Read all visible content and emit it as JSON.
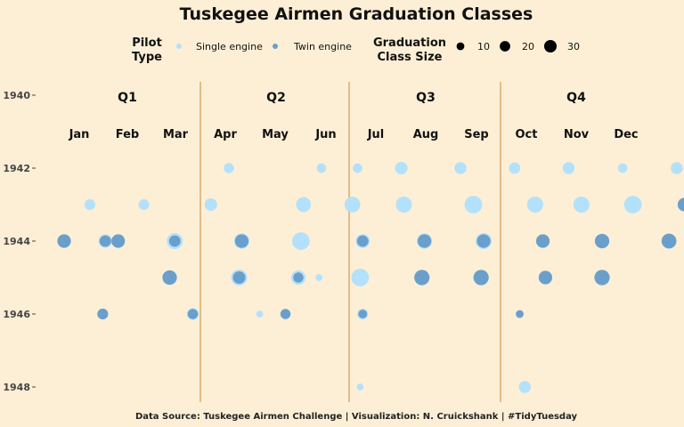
{
  "chart_data": {
    "type": "scatter",
    "title": "Tuskegee Airmen Graduation Classes",
    "caption": "Data Source: Tuskegee Airmen Challenge | Visualization: N. Cruickshank | #TidyTuesday",
    "legend": {
      "pilot_type_title_line1": "Pilot",
      "pilot_type_title_line2": "Type",
      "size_title_line1": "Graduation",
      "size_title_line2": "Class Size",
      "size_values": [
        10,
        20,
        30
      ]
    },
    "series": [
      {
        "name": "Single engine",
        "color": "#b3e1fb"
      },
      {
        "name": "Twin engine",
        "color": "#6a9fcc"
      }
    ],
    "quarters": [
      "Q1",
      "Q2",
      "Q3",
      "Q4"
    ],
    "months": [
      "Jan",
      "Feb",
      "Mar",
      "Apr",
      "May",
      "Jun",
      "Jul",
      "Aug",
      "Sep",
      "Oct",
      "Nov",
      "Dec"
    ],
    "y_ticks": [
      1940,
      1942,
      1944,
      1946,
      1948
    ],
    "ylim": [
      1940,
      1948
    ],
    "grid": false,
    "points": [
      {
        "year": 1942.0,
        "month": 3.2,
        "size": 6,
        "type": "Single engine"
      },
      {
        "year": 1942.0,
        "month": 5.0,
        "size": 5,
        "type": "Single engine"
      },
      {
        "year": 1942.0,
        "month": 5.7,
        "size": 5,
        "type": "Single engine"
      },
      {
        "year": 1942.0,
        "month": 6.55,
        "size": 10,
        "type": "Single engine"
      },
      {
        "year": 1942.0,
        "month": 7.7,
        "size": 9,
        "type": "Single engine"
      },
      {
        "year": 1942.0,
        "month": 8.75,
        "size": 8,
        "type": "Single engine"
      },
      {
        "year": 1942.0,
        "month": 9.8,
        "size": 9,
        "type": "Single engine"
      },
      {
        "year": 1942.0,
        "month": 10.85,
        "size": 5,
        "type": "Single engine"
      },
      {
        "year": 1942.0,
        "month": 11.9,
        "size": 9,
        "type": "Single engine"
      },
      {
        "year": 1943.0,
        "month": 0.5,
        "size": 7,
        "type": "Single engine"
      },
      {
        "year": 1943.0,
        "month": 1.55,
        "size": 7,
        "type": "Single engine"
      },
      {
        "year": 1943.0,
        "month": 2.85,
        "size": 10,
        "type": "Single engine"
      },
      {
        "year": 1943.0,
        "month": 4.65,
        "size": 15,
        "type": "Single engine"
      },
      {
        "year": 1943.0,
        "month": 5.6,
        "size": 17,
        "type": "Single engine"
      },
      {
        "year": 1943.0,
        "month": 6.6,
        "size": 18,
        "type": "Single engine"
      },
      {
        "year": 1943.0,
        "month": 7.95,
        "size": 22,
        "type": "Single engine"
      },
      {
        "year": 1943.0,
        "month": 9.15,
        "size": 18,
        "type": "Single engine"
      },
      {
        "year": 1943.0,
        "month": 10.05,
        "size": 18,
        "type": "Single engine"
      },
      {
        "year": 1943.0,
        "month": 11.05,
        "size": 22,
        "type": "Single engine"
      },
      {
        "year": 1943.0,
        "month": 12.05,
        "size": 12,
        "type": "Twin engine"
      },
      {
        "year": 1944.0,
        "month": 0.0,
        "size": 12,
        "type": "Twin engine"
      },
      {
        "year": 1944.0,
        "month": 0.8,
        "size": 12,
        "type": "Single engine"
      },
      {
        "year": 1944.0,
        "month": 0.8,
        "size": 8,
        "type": "Twin engine"
      },
      {
        "year": 1944.0,
        "month": 1.05,
        "size": 12,
        "type": "Twin engine"
      },
      {
        "year": 1944.0,
        "month": 2.15,
        "size": 18,
        "type": "Single engine"
      },
      {
        "year": 1944.0,
        "month": 2.15,
        "size": 8,
        "type": "Twin engine"
      },
      {
        "year": 1944.0,
        "month": 3.45,
        "size": 16,
        "type": "Single engine"
      },
      {
        "year": 1944.0,
        "month": 3.45,
        "size": 12,
        "type": "Twin engine"
      },
      {
        "year": 1944.0,
        "month": 4.6,
        "size": 22,
        "type": "Single engine"
      },
      {
        "year": 1944.0,
        "month": 5.8,
        "size": 13,
        "type": "Single engine"
      },
      {
        "year": 1944.0,
        "month": 5.8,
        "size": 8,
        "type": "Twin engine"
      },
      {
        "year": 1944.0,
        "month": 7.0,
        "size": 16,
        "type": "Single engine"
      },
      {
        "year": 1944.0,
        "month": 7.0,
        "size": 12,
        "type": "Twin engine"
      },
      {
        "year": 1944.0,
        "month": 8.15,
        "size": 18,
        "type": "Single engine"
      },
      {
        "year": 1944.0,
        "month": 8.15,
        "size": 12,
        "type": "Twin engine"
      },
      {
        "year": 1944.0,
        "month": 9.3,
        "size": 12,
        "type": "Twin engine"
      },
      {
        "year": 1944.0,
        "month": 10.45,
        "size": 14,
        "type": "Twin engine"
      },
      {
        "year": 1944.0,
        "month": 11.75,
        "size": 15,
        "type": "Twin engine"
      },
      {
        "year": 1945.0,
        "month": 2.05,
        "size": 14,
        "type": "Twin engine"
      },
      {
        "year": 1945.0,
        "month": 3.4,
        "size": 18,
        "type": "Single engine"
      },
      {
        "year": 1945.0,
        "month": 3.4,
        "size": 10,
        "type": "Twin engine"
      },
      {
        "year": 1945.0,
        "month": 4.55,
        "size": 14,
        "type": "Single engine"
      },
      {
        "year": 1945.0,
        "month": 4.55,
        "size": 6,
        "type": "Twin engine"
      },
      {
        "year": 1945.0,
        "month": 4.95,
        "size": 2,
        "type": "Single engine"
      },
      {
        "year": 1945.0,
        "month": 5.75,
        "size": 22,
        "type": "Single engine"
      },
      {
        "year": 1945.0,
        "month": 6.95,
        "size": 16,
        "type": "Twin engine"
      },
      {
        "year": 1945.0,
        "month": 8.1,
        "size": 16,
        "type": "Twin engine"
      },
      {
        "year": 1945.0,
        "month": 9.35,
        "size": 12,
        "type": "Twin engine"
      },
      {
        "year": 1945.0,
        "month": 10.45,
        "size": 16,
        "type": "Twin engine"
      },
      {
        "year": 1946.0,
        "month": 0.75,
        "size": 7,
        "type": "Twin engine"
      },
      {
        "year": 1946.0,
        "month": 2.5,
        "size": 9,
        "type": "Single engine"
      },
      {
        "year": 1946.0,
        "month": 2.5,
        "size": 6,
        "type": "Twin engine"
      },
      {
        "year": 1946.0,
        "month": 3.8,
        "size": 2,
        "type": "Single engine"
      },
      {
        "year": 1946.0,
        "month": 4.3,
        "size": 6,
        "type": "Twin engine"
      },
      {
        "year": 1946.0,
        "month": 5.8,
        "size": 7,
        "type": "Single engine"
      },
      {
        "year": 1946.0,
        "month": 5.8,
        "size": 4,
        "type": "Twin engine"
      },
      {
        "year": 1946.0,
        "month": 8.85,
        "size": 3,
        "type": "Twin engine"
      },
      {
        "year": 1948.0,
        "month": 5.75,
        "size": 2,
        "type": "Single engine"
      },
      {
        "year": 1948.0,
        "month": 8.95,
        "size": 9,
        "type": "Single engine"
      }
    ]
  }
}
